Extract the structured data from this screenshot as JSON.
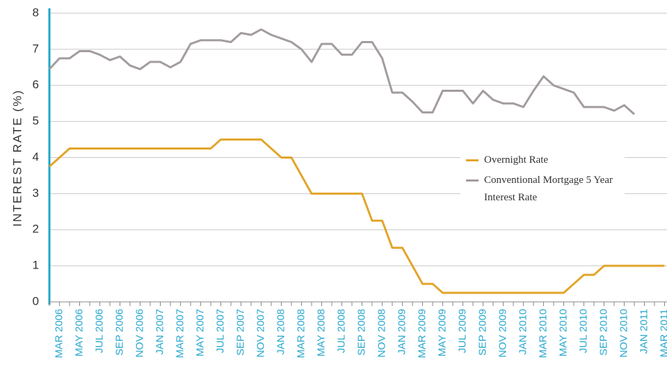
{
  "chart_data": {
    "type": "line",
    "y_label": "INTEREST RATE (%)",
    "categories": [
      null,
      "MAR 2006",
      null,
      "MAY 2006",
      null,
      "JUL 2006",
      null,
      "SEP 2006",
      null,
      "NOV 2006",
      null,
      "JAN 2007",
      null,
      "MAR 2007",
      null,
      "MAY 2007",
      null,
      "JUL 2007",
      null,
      "SEP 2007",
      null,
      "NOV 2007",
      null,
      "JAN 2008",
      null,
      "MAR 2008",
      null,
      "MAY 2008",
      null,
      "JUL 2008",
      null,
      "SEP 2008",
      null,
      "NOV 2008",
      null,
      "JAN 2009",
      null,
      "MAR 2009",
      null,
      "MAY 2009",
      null,
      "JUL 2009",
      null,
      "SEP 2009",
      null,
      "NOV 2009",
      null,
      "JAN 2010",
      null,
      "MAR 2010",
      null,
      "MAY 2010",
      null,
      "JUL 2010",
      null,
      "SEP 2010",
      null,
      "NOV 2010",
      null,
      "JAN 2011",
      null,
      "MAR 2011"
    ],
    "series": [
      {
        "name": "Overnight Rate",
        "color": "#e2a52a",
        "values": [
          3.75,
          4.0,
          4.25,
          4.25,
          4.25,
          4.25,
          4.25,
          4.25,
          4.25,
          4.25,
          4.25,
          4.25,
          4.25,
          4.25,
          4.25,
          4.25,
          4.25,
          4.5,
          4.5,
          4.5,
          4.5,
          4.5,
          4.25,
          4.0,
          4.0,
          3.5,
          3.0,
          3.0,
          3.0,
          3.0,
          3.0,
          3.0,
          2.25,
          2.25,
          1.5,
          1.5,
          1.0,
          0.5,
          0.5,
          0.25,
          0.25,
          0.25,
          0.25,
          0.25,
          0.25,
          0.25,
          0.25,
          0.25,
          0.25,
          0.25,
          0.25,
          0.25,
          0.5,
          0.75,
          0.75,
          1.0,
          1.0,
          1.0,
          1.0,
          1.0,
          1.0,
          1.0
        ]
      },
      {
        "name": "Conventional Mortgage 5 Year Interest Rate",
        "color": "#a39c9c",
        "values": [
          6.45,
          6.75,
          6.75,
          6.95,
          6.95,
          6.85,
          6.7,
          6.8,
          6.55,
          6.45,
          6.65,
          6.65,
          6.5,
          6.65,
          7.15,
          7.25,
          7.25,
          7.25,
          7.2,
          7.45,
          7.4,
          7.55,
          7.4,
          7.3,
          7.2,
          7.0,
          6.65,
          7.15,
          7.15,
          6.85,
          6.85,
          7.2,
          7.2,
          6.75,
          5.8,
          5.8,
          5.55,
          5.25,
          5.25,
          5.85,
          5.85,
          5.85,
          5.5,
          5.85,
          5.6,
          5.5,
          5.5,
          5.4,
          5.85,
          6.25,
          6.0,
          5.9,
          5.8,
          5.4,
          5.4,
          5.4,
          5.3,
          5.45,
          5.2,
          null,
          null,
          null
        ]
      }
    ],
    "ylim": [
      0,
      8
    ],
    "yticks": [
      0,
      1,
      2,
      3,
      4,
      5,
      6,
      7,
      8
    ],
    "grid": true,
    "legend": "right"
  }
}
